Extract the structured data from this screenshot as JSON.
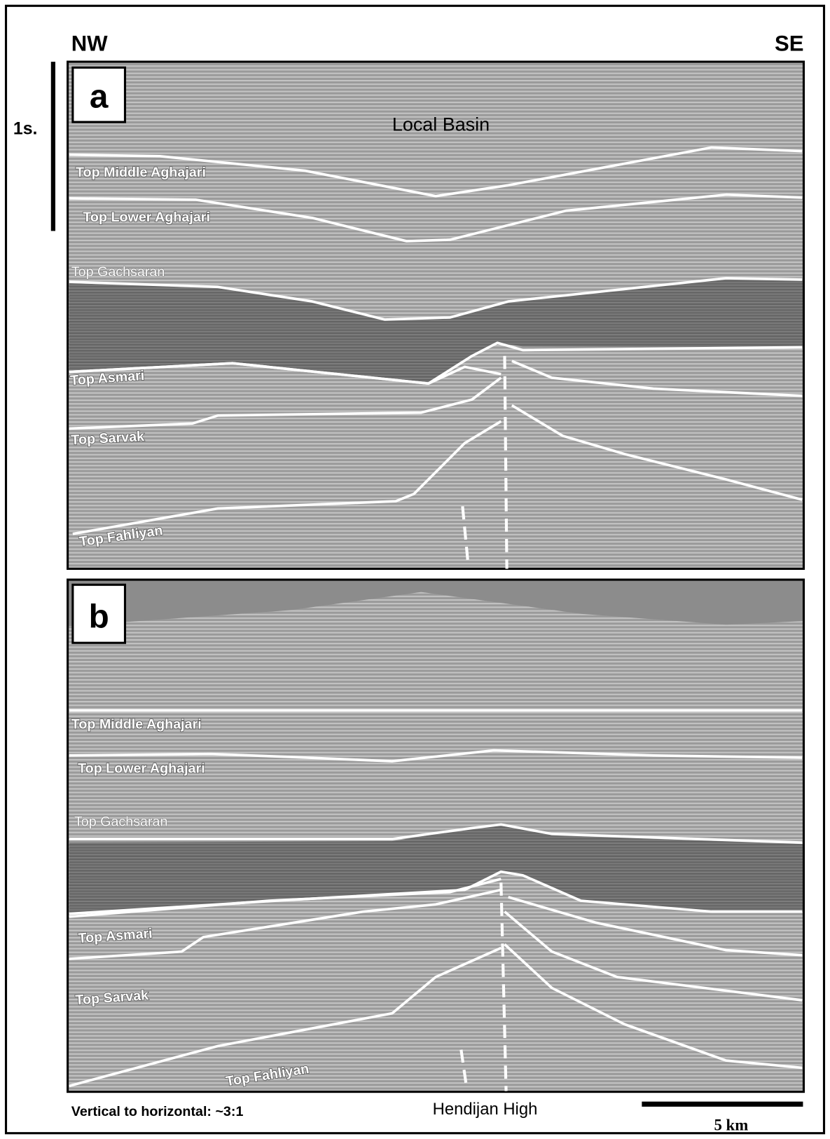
{
  "header": {
    "left": "NW",
    "right": "SE",
    "time_scale": "1s."
  },
  "panels": [
    {
      "label": "a",
      "annotation": "Local Basin",
      "horizons": [
        "Top Middle Aghajari",
        "Top Lower Aghajari",
        "Top Gachsaran",
        "Top Asmari",
        "Top Sarvak",
        "Top Fahliyan"
      ]
    },
    {
      "label": "b",
      "horizons": [
        "Top Middle Aghajari",
        "Top Lower Aghajari",
        "Top Gachsaran",
        "Top Asmari",
        "Top Sarvak",
        "Top Fahliyan"
      ]
    }
  ],
  "footer": {
    "ratio": "Vertical to horizontal: ~3:1",
    "location": "Hendijan High",
    "scale": "5 km"
  }
}
